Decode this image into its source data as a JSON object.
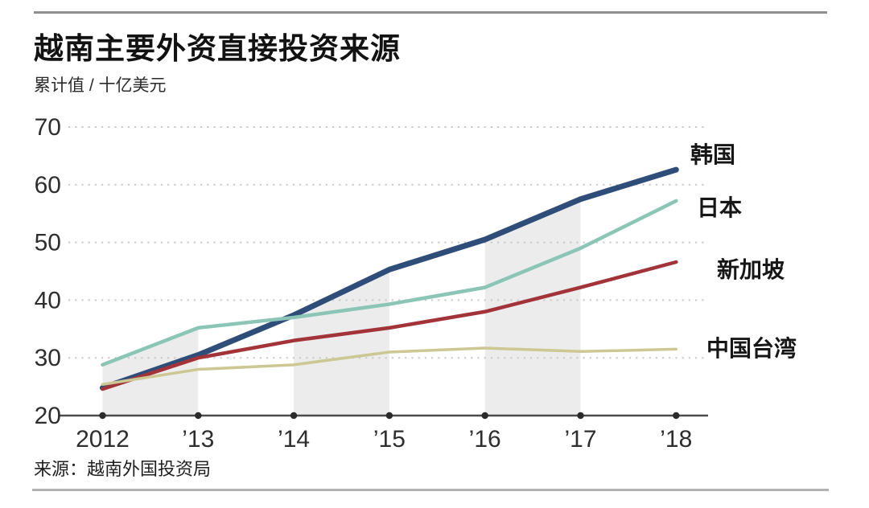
{
  "header": {
    "title": "越南主要外资直接投资来源",
    "subtitle": "累计值 / 十亿美元"
  },
  "footer": {
    "source": "来源：越南外国投资局"
  },
  "colors": {
    "background": "#ffffff",
    "band": "#ececec",
    "gridline": "#c9c9c9",
    "axis": "#4a4a4a",
    "tick_dot": "#2b2b2b",
    "tick_text": "#2e2e2e"
  },
  "chart_data": {
    "type": "line",
    "title": "越南主要外资直接投资来源",
    "subtitle": "累计值 / 十亿美元",
    "ylabel": "累计值 / 十亿美元",
    "x": [
      2012,
      2013,
      2014,
      2015,
      2016,
      2017,
      2018
    ],
    "x_tick_labels": [
      "2012",
      "’13",
      "’14",
      "’15",
      "’16",
      "’17",
      "’18"
    ],
    "ylim": [
      20,
      70
    ],
    "y_ticks": [
      20,
      30,
      40,
      50,
      60,
      70
    ],
    "grid": "horizontal-dotted",
    "legend_position": "right-of-line-ends",
    "series": [
      {
        "name": "韩国",
        "color": "#2e4d78",
        "values": [
          24.8,
          30.5,
          37.4,
          45.3,
          50.5,
          57.5,
          62.6
        ]
      },
      {
        "name": "日本",
        "color": "#8ac5b5",
        "values": [
          28.8,
          35.2,
          37.0,
          39.3,
          42.2,
          49.0,
          57.2
        ]
      },
      {
        "name": "新加坡",
        "color": "#a23439",
        "values": [
          24.6,
          30.0,
          33.0,
          35.2,
          38.0,
          42.2,
          46.6
        ]
      },
      {
        "name": "中国台湾",
        "color": "#ccc793",
        "values": [
          25.4,
          28.0,
          28.8,
          31.0,
          31.7,
          31.1,
          31.5
        ]
      }
    ],
    "shaded_bands": [
      [
        2012,
        2013
      ],
      [
        2014,
        2015
      ],
      [
        2016,
        2017
      ]
    ],
    "band_color": "#ececec"
  }
}
